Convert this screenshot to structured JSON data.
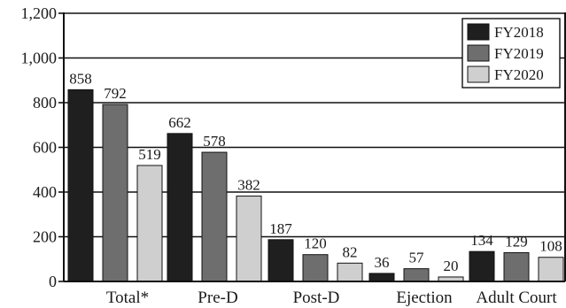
{
  "chart_data": {
    "type": "bar",
    "title": "",
    "xlabel": "",
    "ylabel": "",
    "categories": [
      "Total*",
      "Pre-D",
      "Post-D",
      "Ejection",
      "Adult Court"
    ],
    "series": [
      {
        "name": "FY2018",
        "values": [
          858,
          662,
          187,
          36,
          134
        ],
        "color": "#1f1f1f"
      },
      {
        "name": "FY2019",
        "values": [
          792,
          578,
          120,
          57,
          129
        ],
        "color": "#6e6e6e"
      },
      {
        "name": "FY2020",
        "values": [
          519,
          382,
          82,
          20,
          108
        ],
        "color": "#cfcfcf"
      }
    ],
    "ylim": [
      0,
      1200
    ],
    "yticks": [
      0,
      200,
      400,
      600,
      800,
      1000,
      1200
    ],
    "ytick_labels": [
      "0",
      "200",
      "400",
      "600",
      "800",
      "1,000",
      "1,200"
    ],
    "grid": true,
    "legend_position": "top-right"
  }
}
